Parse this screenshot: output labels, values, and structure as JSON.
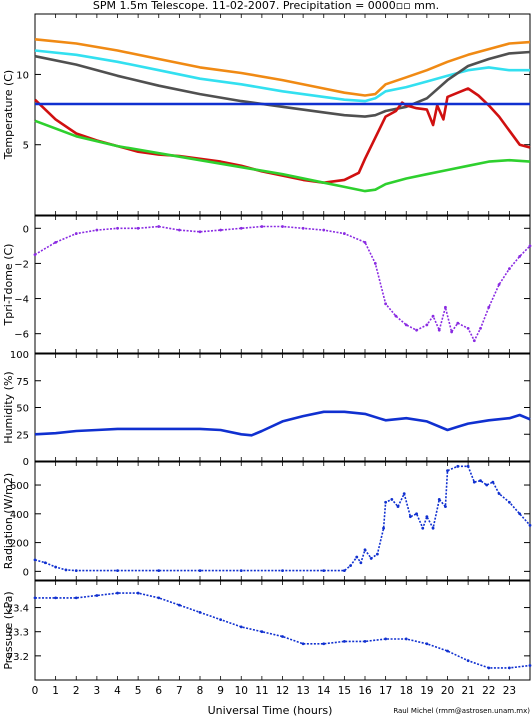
{
  "title": "SPM 1.5m Telescope. 11-02-2007. Precipitation = 0000▫▫ mm.",
  "credit": "Raul Michel (rmm@astrosen.unam.mx)",
  "xlabel": "Universal Time (hours)",
  "x_ticks": [
    "0",
    "1",
    "2",
    "3",
    "4",
    "5",
    "6",
    "7",
    "8",
    "9",
    "10",
    "11",
    "12",
    "13",
    "14",
    "15",
    "16",
    "17",
    "18",
    "19",
    "20",
    "21",
    "22",
    "23"
  ],
  "colors": {
    "orange": "#f08a14",
    "cyan": "#33e0f0",
    "gray": "#505050",
    "red": "#d01010",
    "blue": "#1030d0",
    "green": "#2ed02e",
    "purple": "#8a2be2"
  },
  "chart_data": [
    {
      "type": "line",
      "ylabel": "Temperature (C)",
      "y_ticks": [
        "5",
        "10"
      ],
      "xlim": [
        0,
        24
      ],
      "ylim": [
        0,
        14.3
      ],
      "series": [
        {
          "color": "orange",
          "x": [
            0,
            2,
            4,
            6,
            8,
            10,
            12,
            14,
            15,
            16,
            16.5,
            17,
            18,
            19,
            20,
            21,
            22,
            23,
            24
          ],
          "y": [
            12.5,
            12.2,
            11.7,
            11.1,
            10.5,
            10.1,
            9.6,
            9.0,
            8.7,
            8.5,
            8.6,
            9.3,
            9.8,
            10.3,
            10.9,
            11.4,
            11.8,
            12.2,
            12.3
          ]
        },
        {
          "color": "cyan",
          "x": [
            0,
            2,
            4,
            6,
            8,
            10,
            12,
            14,
            15,
            16,
            16.5,
            17,
            18,
            19,
            20,
            21,
            22,
            23,
            24
          ],
          "y": [
            11.7,
            11.4,
            10.9,
            10.3,
            9.7,
            9.3,
            8.8,
            8.4,
            8.2,
            8.1,
            8.3,
            8.8,
            9.1,
            9.5,
            9.9,
            10.3,
            10.5,
            10.3,
            10.3
          ]
        },
        {
          "color": "gray",
          "x": [
            0,
            2,
            4,
            6,
            8,
            10,
            12,
            14,
            15,
            16,
            16.5,
            17,
            18,
            19,
            20,
            21,
            22,
            23,
            24
          ],
          "y": [
            11.3,
            10.7,
            9.9,
            9.2,
            8.6,
            8.1,
            7.7,
            7.3,
            7.1,
            7.0,
            7.1,
            7.4,
            7.7,
            8.3,
            9.6,
            10.6,
            11.1,
            11.5,
            11.6
          ]
        },
        {
          "color": "red",
          "x": [
            0,
            1,
            2,
            3,
            4,
            5,
            6,
            7,
            8,
            9,
            10,
            11,
            12,
            13,
            14,
            15,
            15.7,
            16,
            16.5,
            17,
            17.5,
            17.8,
            18,
            18.5,
            19,
            19.3,
            19.5,
            19.8,
            20,
            20.5,
            21,
            21.5,
            22,
            22.5,
            23,
            23.5,
            24
          ],
          "y": [
            8.2,
            6.8,
            5.8,
            5.3,
            4.9,
            4.5,
            4.3,
            4.2,
            4.0,
            3.8,
            3.5,
            3.1,
            2.8,
            2.5,
            2.3,
            2.5,
            3.0,
            4.0,
            5.5,
            7.0,
            7.4,
            8.0,
            7.8,
            7.6,
            7.5,
            6.4,
            7.8,
            6.8,
            8.4,
            8.7,
            9.0,
            8.5,
            7.8,
            7.0,
            6.0,
            5.0,
            4.8
          ]
        },
        {
          "color": "blue",
          "x": [
            0,
            24
          ],
          "y": [
            7.9,
            7.9
          ]
        },
        {
          "color": "green",
          "x": [
            0,
            2,
            4,
            6,
            8,
            10,
            12,
            14,
            15,
            16,
            16.5,
            17,
            18,
            19,
            20,
            21,
            22,
            23,
            24
          ],
          "y": [
            6.7,
            5.6,
            4.9,
            4.4,
            3.9,
            3.4,
            2.9,
            2.3,
            2.0,
            1.7,
            1.8,
            2.2,
            2.6,
            2.9,
            3.2,
            3.5,
            3.8,
            3.9,
            3.8
          ]
        }
      ]
    },
    {
      "type": "scatter",
      "ylabel": "Tpri-Tdome (C)",
      "y_ticks": [
        "0",
        "−2",
        "−4",
        "−6"
      ],
      "xlim": [
        0,
        24
      ],
      "ylim": [
        -7.1,
        0.7
      ],
      "series": [
        {
          "color": "purple",
          "x": [
            0,
            1,
            2,
            3,
            4,
            5,
            6,
            7,
            8,
            9,
            10,
            11,
            12,
            13,
            14,
            15,
            16,
            16.5,
            17,
            17.5,
            18,
            18.5,
            19,
            19.3,
            19.6,
            19.9,
            20.2,
            20.5,
            21,
            21.3,
            21.6,
            22,
            22.5,
            23,
            23.5,
            24
          ],
          "y": [
            -1.5,
            -0.8,
            -0.3,
            -0.1,
            0.0,
            0.0,
            0.1,
            -0.1,
            -0.2,
            -0.1,
            0.0,
            0.1,
            0.1,
            0.0,
            -0.1,
            -0.3,
            -0.8,
            -2.0,
            -4.3,
            -5.0,
            -5.5,
            -5.8,
            -5.5,
            -5.0,
            -5.8,
            -4.5,
            -5.9,
            -5.4,
            -5.7,
            -6.4,
            -5.7,
            -4.5,
            -3.2,
            -2.3,
            -1.6,
            -1.0
          ]
        }
      ]
    },
    {
      "type": "line",
      "ylabel": "Humidity (%)",
      "y_ticks": [
        "0",
        "25",
        "50",
        "75",
        "100"
      ],
      "xlim": [
        0,
        24
      ],
      "ylim": [
        0,
        100
      ],
      "series": [
        {
          "color": "blue",
          "x": [
            0,
            1,
            2,
            3,
            4,
            5,
            6,
            7,
            8,
            9,
            10,
            10.5,
            11,
            12,
            13,
            14,
            15,
            16,
            17,
            18,
            19,
            20,
            20.5,
            21,
            22,
            23,
            23.5,
            24
          ],
          "y": [
            25,
            26,
            28,
            29,
            30,
            30,
            30,
            30,
            30,
            29,
            25,
            24,
            28,
            37,
            42,
            46,
            46,
            44,
            38,
            40,
            37,
            29,
            32,
            35,
            38,
            40,
            43,
            39
          ]
        }
      ]
    },
    {
      "type": "scatter",
      "ylabel": "Radiation (W/m2)",
      "y_ticks": [
        "0",
        "200",
        "400",
        "600"
      ],
      "xlim": [
        0,
        24
      ],
      "ylim": [
        -60,
        760
      ],
      "series": [
        {
          "color": "blue",
          "x": [
            0,
            0.5,
            1,
            1.5,
            2,
            4,
            6,
            8,
            10,
            12,
            14,
            15,
            15.3,
            15.6,
            15.8,
            16,
            16.3,
            16.6,
            16.9,
            17,
            17.3,
            17.6,
            17.9,
            18.2,
            18.5,
            18.8,
            19,
            19.3,
            19.6,
            19.9,
            20,
            20.5,
            21,
            21.3,
            21.6,
            21.9,
            22.2,
            22.5,
            23,
            23.5,
            24
          ],
          "y": [
            80,
            60,
            30,
            10,
            5,
            5,
            5,
            5,
            5,
            5,
            5,
            5,
            40,
            100,
            60,
            150,
            90,
            120,
            300,
            480,
            500,
            450,
            540,
            380,
            400,
            300,
            380,
            300,
            500,
            450,
            700,
            730,
            730,
            620,
            630,
            600,
            620,
            540,
            480,
            400,
            320
          ]
        }
      ]
    },
    {
      "type": "scatter",
      "ylabel": "Pressure (kPa)",
      "y_ticks": [
        "73.2",
        "73.3",
        "73.4"
      ],
      "xlim": [
        0,
        24
      ],
      "ylim": [
        73.1,
        73.51
      ],
      "series": [
        {
          "color": "blue",
          "x": [
            0,
            1,
            2,
            3,
            4,
            5,
            6,
            7,
            8,
            9,
            10,
            11,
            12,
            13,
            14,
            15,
            16,
            17,
            18,
            19,
            20,
            21,
            22,
            23,
            24
          ],
          "y": [
            73.44,
            73.44,
            73.44,
            73.45,
            73.46,
            73.46,
            73.44,
            73.41,
            73.38,
            73.35,
            73.32,
            73.3,
            73.28,
            73.25,
            73.25,
            73.26,
            73.26,
            73.27,
            73.27,
            73.25,
            73.22,
            73.18,
            73.15,
            73.15,
            73.16
          ]
        }
      ]
    }
  ]
}
